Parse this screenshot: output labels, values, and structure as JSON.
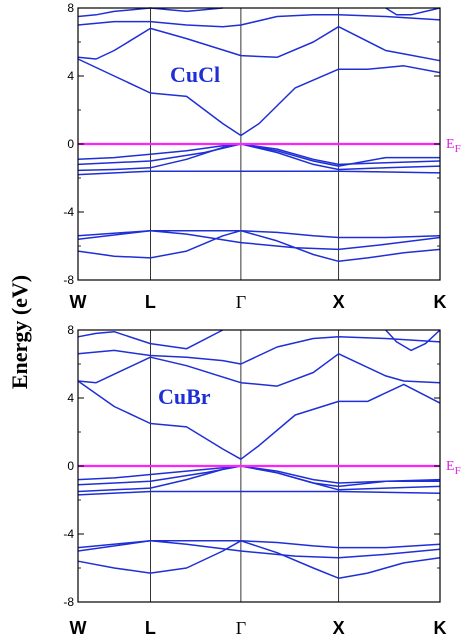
{
  "colors": {
    "bands": "#1f2fd6",
    "fermi": "#ff22ff",
    "material_label": "#1f2fd6",
    "ef_label": "#e020e0"
  },
  "ylabel": "Energy (eV)",
  "ef_label": "E",
  "ef_subscript": "F",
  "chart_data": [
    {
      "type": "line",
      "title": "CuCl",
      "ylabel": "Energy (eV)",
      "ylim": [
        -8,
        8
      ],
      "yticks": [
        "8",
        "4",
        "0",
        "-4",
        "-8"
      ],
      "kpoints": [
        "W",
        "L",
        "Γ",
        "X",
        "K"
      ],
      "kpoint_pos": [
        0,
        0.2,
        0.45,
        0.72,
        1.0
      ],
      "fermi_level": 0,
      "series": [
        {
          "x": [
            0,
            0.1,
            0.2,
            0.3,
            0.4,
            0.45,
            0.55,
            0.65,
            0.72,
            0.8,
            0.9,
            1.0
          ],
          "y": [
            -6.3,
            -6.6,
            -6.7,
            -6.3,
            -5.4,
            -5.1,
            -5.7,
            -6.5,
            -6.9,
            -6.7,
            -6.4,
            -6.2
          ]
        },
        {
          "x": [
            0,
            0.2,
            0.3,
            0.4,
            0.45,
            0.55,
            0.65,
            0.72,
            0.85,
            1.0
          ],
          "y": [
            -5.4,
            -5.1,
            -5.1,
            -5.1,
            -5.1,
            -5.2,
            -5.4,
            -5.5,
            -5.5,
            -5.4
          ]
        },
        {
          "x": [
            0,
            0.2,
            0.3,
            0.45,
            0.6,
            0.72,
            0.85,
            1.0
          ],
          "y": [
            -5.6,
            -5.1,
            -5.3,
            -5.8,
            -6.1,
            -6.2,
            -5.9,
            -5.5
          ]
        },
        {
          "x": [
            0,
            0.2,
            0.3,
            0.45,
            0.6,
            0.72,
            1.0
          ],
          "y": [
            -1.8,
            -1.6,
            -1.6,
            -1.6,
            -1.6,
            -1.6,
            -1.7
          ]
        },
        {
          "x": [
            0,
            0.1,
            0.2,
            0.3,
            0.4,
            0.45,
            0.55,
            0.65,
            0.72,
            0.85,
            1.0
          ],
          "y": [
            -1.55,
            -1.5,
            -1.4,
            -0.9,
            -0.2,
            0.0,
            -0.5,
            -1.2,
            -1.5,
            -1.4,
            -1.3
          ]
        },
        {
          "x": [
            0,
            0.1,
            0.2,
            0.3,
            0.4,
            0.45,
            0.55,
            0.65,
            0.72,
            0.85,
            1.0
          ],
          "y": [
            -0.9,
            -0.8,
            -0.6,
            -0.4,
            -0.1,
            0.0,
            -0.3,
            -0.9,
            -1.2,
            -1.1,
            -1.0
          ]
        },
        {
          "x": [
            0,
            0.2,
            0.35,
            0.45,
            0.55,
            0.65,
            0.72,
            0.85,
            1.0
          ],
          "y": [
            -1.2,
            -1.0,
            -0.5,
            0.0,
            -0.4,
            -1.0,
            -1.3,
            -0.8,
            -0.8
          ]
        },
        {
          "x": [
            0,
            0.1,
            0.2,
            0.3,
            0.4,
            0.45,
            0.5,
            0.6,
            0.72,
            0.8,
            0.9,
            1.0
          ],
          "y": [
            5.0,
            4.0,
            3.0,
            2.8,
            1.2,
            0.5,
            1.2,
            3.3,
            4.4,
            4.4,
            4.6,
            4.2
          ]
        },
        {
          "x": [
            0,
            0.05,
            0.1,
            0.2,
            0.3,
            0.45,
            0.55,
            0.65,
            0.72,
            0.85,
            0.9,
            1.0
          ],
          "y": [
            5.1,
            5.0,
            5.5,
            6.8,
            6.2,
            5.2,
            5.1,
            6.0,
            6.9,
            5.5,
            5.3,
            4.9
          ]
        },
        {
          "x": [
            0,
            0.1,
            0.2,
            0.3,
            0.4,
            0.45,
            0.55,
            0.65,
            0.72,
            0.85,
            1.0
          ],
          "y": [
            7.0,
            7.2,
            7.2,
            7.0,
            6.9,
            7.0,
            7.5,
            7.6,
            7.6,
            7.5,
            7.3
          ]
        },
        {
          "x": [
            0,
            0.05,
            0.1,
            0.2,
            0.3,
            0.4
          ],
          "y": [
            7.5,
            7.6,
            7.8,
            8.0,
            7.8,
            8.0
          ]
        },
        {
          "x": [
            0.85,
            0.88,
            0.92,
            0.96,
            1.0
          ],
          "y": [
            8.0,
            7.6,
            7.6,
            7.8,
            8.0
          ]
        }
      ]
    },
    {
      "type": "line",
      "title": "CuBr",
      "ylabel": "Energy (eV)",
      "ylim": [
        -8,
        8
      ],
      "yticks": [
        "8",
        "4",
        "0",
        "-4",
        "-8"
      ],
      "kpoints": [
        "W",
        "L",
        "Γ",
        "X",
        "K"
      ],
      "kpoint_pos": [
        0,
        0.2,
        0.45,
        0.72,
        1.0
      ],
      "fermi_level": 0,
      "series": [
        {
          "x": [
            0,
            0.1,
            0.2,
            0.3,
            0.4,
            0.45,
            0.55,
            0.65,
            0.72,
            0.8,
            0.9,
            1.0
          ],
          "y": [
            -5.6,
            -6.0,
            -6.3,
            -6.0,
            -5.0,
            -4.4,
            -5.1,
            -6.0,
            -6.6,
            -6.3,
            -5.7,
            -5.4
          ]
        },
        {
          "x": [
            0,
            0.2,
            0.3,
            0.4,
            0.45,
            0.55,
            0.65,
            0.72,
            0.85,
            1.0
          ],
          "y": [
            -4.8,
            -4.4,
            -4.4,
            -4.4,
            -4.4,
            -4.5,
            -4.7,
            -4.8,
            -4.8,
            -4.6
          ]
        },
        {
          "x": [
            0,
            0.2,
            0.3,
            0.45,
            0.6,
            0.72,
            0.85,
            1.0
          ],
          "y": [
            -5.0,
            -4.4,
            -4.6,
            -5.0,
            -5.3,
            -5.4,
            -5.2,
            -4.9
          ]
        },
        {
          "x": [
            0,
            0.2,
            0.3,
            0.45,
            0.6,
            0.72,
            1.0
          ],
          "y": [
            -1.7,
            -1.5,
            -1.5,
            -1.5,
            -1.5,
            -1.5,
            -1.6
          ]
        },
        {
          "x": [
            0,
            0.1,
            0.2,
            0.3,
            0.4,
            0.45,
            0.55,
            0.65,
            0.72,
            0.85,
            1.0
          ],
          "y": [
            -1.5,
            -1.4,
            -1.3,
            -0.8,
            -0.2,
            0.0,
            -0.4,
            -1.0,
            -1.4,
            -1.3,
            -1.2
          ]
        },
        {
          "x": [
            0,
            0.1,
            0.2,
            0.3,
            0.4,
            0.45,
            0.55,
            0.65,
            0.72,
            0.85,
            1.0
          ],
          "y": [
            -0.8,
            -0.7,
            -0.5,
            -0.3,
            -0.1,
            0.0,
            -0.3,
            -0.8,
            -1.0,
            -0.9,
            -0.8
          ]
        },
        {
          "x": [
            0,
            0.2,
            0.35,
            0.45,
            0.55,
            0.65,
            0.72,
            0.85,
            1.0
          ],
          "y": [
            -1.1,
            -0.9,
            -0.4,
            0.0,
            -0.4,
            -1.0,
            -1.2,
            -0.9,
            -0.9
          ]
        },
        {
          "x": [
            0,
            0.1,
            0.2,
            0.3,
            0.4,
            0.45,
            0.5,
            0.6,
            0.72,
            0.8,
            0.9,
            1.0
          ],
          "y": [
            5.0,
            3.5,
            2.5,
            2.3,
            1.0,
            0.4,
            1.2,
            3.0,
            3.8,
            3.8,
            4.8,
            3.7
          ]
        },
        {
          "x": [
            0,
            0.05,
            0.1,
            0.2,
            0.3,
            0.45,
            0.55,
            0.65,
            0.72,
            0.85,
            0.9,
            1.0
          ],
          "y": [
            5.0,
            4.9,
            5.4,
            6.4,
            5.9,
            4.9,
            4.7,
            5.5,
            6.6,
            5.3,
            5.0,
            4.9
          ]
        },
        {
          "x": [
            0,
            0.1,
            0.2,
            0.3,
            0.4,
            0.45,
            0.55,
            0.65,
            0.72,
            0.85,
            1.0
          ],
          "y": [
            6.6,
            6.8,
            6.5,
            6.4,
            6.2,
            6.0,
            7.0,
            7.5,
            7.6,
            7.5,
            7.3
          ]
        },
        {
          "x": [
            0,
            0.05,
            0.1,
            0.2,
            0.3,
            0.4
          ],
          "y": [
            7.6,
            7.8,
            7.9,
            7.2,
            6.9,
            8.0
          ]
        },
        {
          "x": [
            0.85,
            0.88,
            0.92,
            0.96,
            1.0
          ],
          "y": [
            8.0,
            7.3,
            6.8,
            7.2,
            8.0
          ]
        }
      ]
    }
  ]
}
